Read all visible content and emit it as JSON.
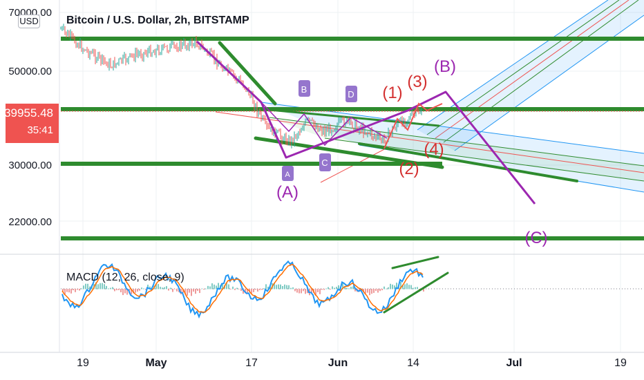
{
  "chart": {
    "title": "Bitcoin / U.S. Dollar, 2h, BITSTAMP",
    "currency": "USD",
    "last_price": "39955.48",
    "countdown": "35:41",
    "price_axis_labels": [
      "70000.00",
      "50000.00",
      "30000.00",
      "22000.00"
    ],
    "time_axis_labels": [
      "19",
      "May",
      "17",
      "Jun",
      "14",
      "Jul",
      "19"
    ],
    "wave_labels": {
      "A_paren": "(A)",
      "B_paren": "(B)",
      "C_paren": "(C)",
      "w1": "(1)",
      "w2": "(2)",
      "w3": "(3)",
      "w4": "(4)",
      "tri_A": "A",
      "tri_B": "B",
      "tri_C": "C",
      "tri_D": "D"
    },
    "indicator_label": "MACD (12, 26, close, 9)",
    "colors": {
      "up": "#26a69a",
      "down": "#ef5350",
      "green_line": "#2e8b2e",
      "purple": "#9c27b0",
      "red_text": "#d32f2f",
      "price_tag": "#ef5350",
      "channel_blue": "#2196f3",
      "macd_line": "#2196f3",
      "signal_line": "#ff6d00",
      "label_purple_box": "#9575cd"
    }
  }
}
